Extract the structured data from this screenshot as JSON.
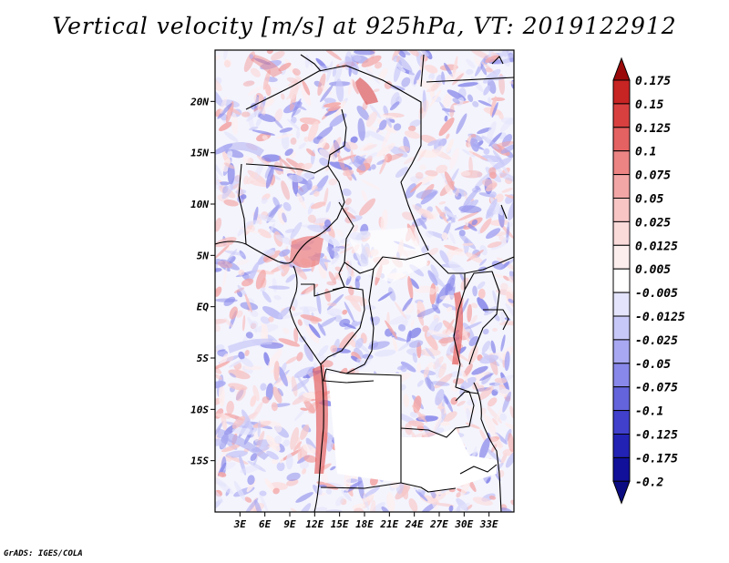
{
  "title": "Vertical velocity [m/s] at 925hPa, VT: 2019122912",
  "credit": "GrADS: IGES/COLA",
  "map": {
    "lon_range": [
      0,
      36
    ],
    "lat_range": [
      -20,
      25
    ],
    "lon_ticks": [
      {
        "value": 3,
        "label": "3E"
      },
      {
        "value": 6,
        "label": "6E"
      },
      {
        "value": 9,
        "label": "9E"
      },
      {
        "value": 12,
        "label": "12E"
      },
      {
        "value": 15,
        "label": "15E"
      },
      {
        "value": 18,
        "label": "18E"
      },
      {
        "value": 21,
        "label": "21E"
      },
      {
        "value": 24,
        "label": "24E"
      },
      {
        "value": 27,
        "label": "27E"
      },
      {
        "value": 30,
        "label": "30E"
      },
      {
        "value": 33,
        "label": "33E"
      }
    ],
    "lat_ticks": [
      {
        "value": 20,
        "label": "20N"
      },
      {
        "value": 15,
        "label": "15N"
      },
      {
        "value": 10,
        "label": "10N"
      },
      {
        "value": 5,
        "label": "5N"
      },
      {
        "value": 0,
        "label": "EQ"
      },
      {
        "value": -5,
        "label": "5S"
      },
      {
        "value": -10,
        "label": "10S"
      },
      {
        "value": -15,
        "label": "15S"
      }
    ]
  },
  "colorbar": {
    "levels": [
      {
        "label": "0.175",
        "color": "#b01010"
      },
      {
        "label": "0.15",
        "color": "#c72424"
      },
      {
        "label": "0.125",
        "color": "#d84040"
      },
      {
        "label": "0.1",
        "color": "#e46262"
      },
      {
        "label": "0.075",
        "color": "#ec8484"
      },
      {
        "label": "0.05",
        "color": "#f3a6a6"
      },
      {
        "label": "0.025",
        "color": "#f8c4c4"
      },
      {
        "label": "0.0125",
        "color": "#fbdada"
      },
      {
        "label": "0.005",
        "color": "#fdeeee"
      },
      {
        "label": "-0.005",
        "color": "#ffffff"
      },
      {
        "label": "-0.0125",
        "color": "#e4e4fc"
      },
      {
        "label": "-0.025",
        "color": "#c8c8f8"
      },
      {
        "label": "-0.05",
        "color": "#a8a8f2"
      },
      {
        "label": "-0.075",
        "color": "#8888ea"
      },
      {
        "label": "-0.1",
        "color": "#6464dc"
      },
      {
        "label": "-0.125",
        "color": "#4040cc"
      },
      {
        "label": "-0.175",
        "color": "#2222b4"
      },
      {
        "label": "-0.2",
        "color": "#10109a"
      }
    ],
    "top_cap_color": "#9a0a0a",
    "bottom_cap_color": "#0c0c82"
  }
}
